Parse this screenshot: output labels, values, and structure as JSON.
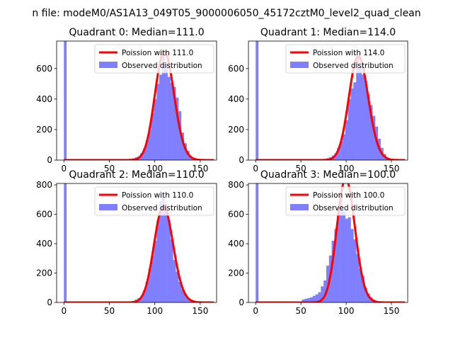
{
  "suptitle": "n file: modeM0/AS1A13_049T05_9000006050_45172cztM0_level2_quad_clean",
  "colors": {
    "poisson": "#ff0000",
    "observed": "#8080ff",
    "axis": "#000000",
    "background": "#ffffff"
  },
  "chart_data": [
    {
      "type": "bar",
      "title": "Quadrant 0: Median=111.0",
      "xlim": [
        -8,
        168
      ],
      "ylim": [
        0,
        780
      ],
      "xticks": [
        0,
        50,
        100,
        150
      ],
      "yticks": [
        0,
        200,
        400,
        600
      ],
      "legend_location": "top-right",
      "legend": [
        "Poission with 111.0",
        "Observed distribution"
      ],
      "poisson_mean": 111.0,
      "observed_zero_spike": 780,
      "observed": {
        "bin_width": 3,
        "bin_starts": [
          66,
          69,
          72,
          75,
          78,
          81,
          84,
          87,
          90,
          93,
          96,
          99,
          102,
          105,
          108,
          111,
          114,
          117,
          120,
          123,
          126,
          129,
          132,
          135,
          138,
          141,
          144,
          147
        ],
        "counts": [
          2,
          4,
          8,
          12,
          18,
          25,
          45,
          75,
          130,
          200,
          310,
          400,
          500,
          560,
          690,
          630,
          545,
          505,
          480,
          410,
          320,
          180,
          110,
          60,
          20,
          10,
          5,
          2
        ]
      }
    },
    {
      "type": "bar",
      "title": "Quadrant 1: Median=114.0",
      "xlim": [
        -8,
        168
      ],
      "ylim": [
        0,
        780
      ],
      "xticks": [
        0,
        50,
        100,
        150
      ],
      "yticks": [
        0,
        200,
        400,
        600
      ],
      "legend_location": "top-right",
      "legend": [
        "Poission with 114.0",
        "Observed distribution"
      ],
      "poisson_mean": 114.0,
      "observed_zero_spike": 780,
      "observed": {
        "bin_width": 3,
        "bin_starts": [
          72,
          75,
          78,
          81,
          84,
          87,
          90,
          93,
          96,
          99,
          102,
          105,
          108,
          111,
          114,
          117,
          120,
          123,
          126,
          129,
          132,
          135,
          138,
          141,
          144,
          147,
          150
        ],
        "counts": [
          3,
          6,
          12,
          18,
          30,
          45,
          80,
          120,
          170,
          260,
          400,
          470,
          510,
          680,
          610,
          560,
          520,
          430,
          360,
          290,
          220,
          140,
          80,
          40,
          15,
          8,
          3
        ]
      }
    },
    {
      "type": "bar",
      "title": "Quadrant 2: Median=110.0",
      "xlim": [
        -8,
        168
      ],
      "ylim": [
        0,
        810
      ],
      "xticks": [
        0,
        50,
        100,
        150
      ],
      "yticks": [
        0,
        200,
        400,
        600,
        800
      ],
      "legend_location": "top-right",
      "legend": [
        "Poission with 110.0",
        "Observed distribution"
      ],
      "poisson_mean": 110.0,
      "observed_zero_spike": 810,
      "observed": {
        "bin_width": 3,
        "bin_starts": [
          69,
          72,
          75,
          78,
          81,
          84,
          87,
          90,
          93,
          96,
          99,
          102,
          105,
          108,
          111,
          114,
          117,
          120,
          123,
          126,
          129,
          132,
          135,
          138,
          141,
          144
        ],
        "counts": [
          4,
          6,
          10,
          20,
          30,
          40,
          80,
          140,
          230,
          320,
          420,
          560,
          690,
          720,
          620,
          560,
          430,
          290,
          210,
          140,
          90,
          55,
          30,
          20,
          10,
          5
        ]
      }
    },
    {
      "type": "bar",
      "title": "Quadrant 3: Median=100.0",
      "xlim": [
        -8,
        168
      ],
      "ylim": [
        0,
        810
      ],
      "xticks": [
        0,
        50,
        100,
        150
      ],
      "yticks": [
        0,
        200,
        400,
        600,
        800
      ],
      "legend_location": "top-right",
      "legend": [
        "Poission with 100.0",
        "Observed distribution"
      ],
      "poisson_mean": 100.0,
      "observed_zero_spike": 810,
      "observed": {
        "bin_width": 3,
        "bin_starts": [
          51,
          54,
          57,
          60,
          63,
          66,
          69,
          72,
          75,
          78,
          81,
          84,
          87,
          90,
          93,
          96,
          99,
          102,
          105,
          108,
          111,
          114,
          117,
          120,
          123,
          126,
          129,
          132,
          135,
          138
        ],
        "counts": [
          20,
          25,
          30,
          35,
          45,
          55,
          70,
          110,
          150,
          250,
          320,
          420,
          500,
          640,
          700,
          620,
          570,
          580,
          500,
          430,
          330,
          230,
          180,
          100,
          60,
          35,
          20,
          10,
          5,
          2
        ]
      }
    }
  ]
}
